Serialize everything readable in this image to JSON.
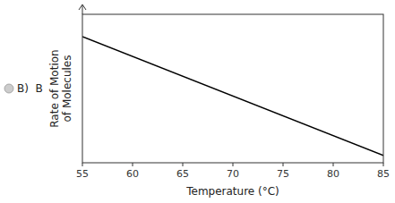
{
  "chart_data": {
    "type": "line",
    "x": [
      55,
      85
    ],
    "values": [
      0.85,
      0.05
    ],
    "color": "#000000",
    "xlabel": "Temperature (°C)",
    "ylabel": "Rate of Motion\nof Molecules",
    "annotations": [
      "B)  B"
    ],
    "xlim": [
      55,
      85
    ],
    "ylim": [
      0,
      1
    ],
    "xticks": [
      55,
      60,
      65,
      70,
      75,
      80,
      85
    ],
    "tick_labels": "x",
    "grid": false
  }
}
